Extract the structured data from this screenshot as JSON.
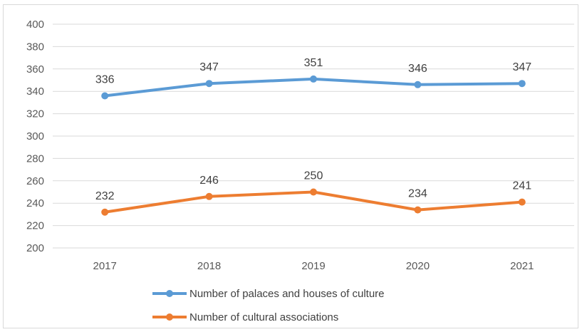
{
  "chart_data": {
    "type": "line",
    "categories": [
      "2017",
      "2018",
      "2019",
      "2020",
      "2021"
    ],
    "series": [
      {
        "name": "Number of palaces and houses of culture",
        "values": [
          336,
          347,
          351,
          346,
          347
        ],
        "color": "#5b9bd5"
      },
      {
        "name": "Number of cultural associations",
        "values": [
          232,
          246,
          250,
          234,
          241
        ],
        "color": "#ed7d31"
      }
    ],
    "y_ticks": [
      "200",
      "220",
      "240",
      "260",
      "280",
      "300",
      "320",
      "340",
      "360",
      "380",
      "400"
    ],
    "ylim": [
      200,
      400
    ],
    "grid": true,
    "legend_position": "bottom",
    "data_labels": true
  }
}
